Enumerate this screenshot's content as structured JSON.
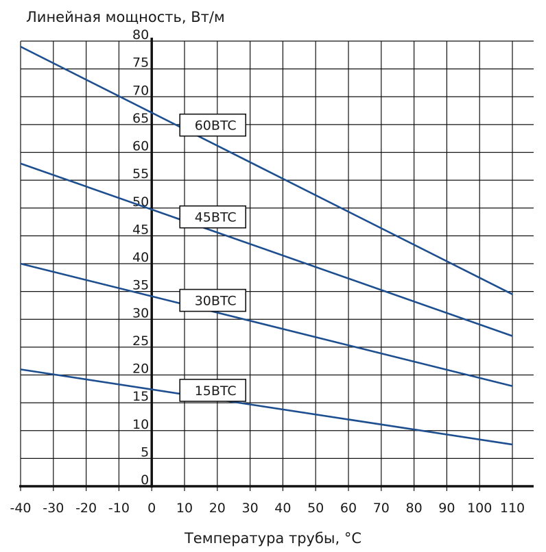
{
  "chart_data": {
    "type": "line",
    "title": "",
    "ylabel": "Линейная мощность, Вт/м",
    "xlabel": "Температура трубы, °C",
    "xlim": [
      -40,
      110
    ],
    "ylim": [
      0,
      80
    ],
    "x_ticks": [
      -40,
      -30,
      -20,
      -10,
      0,
      10,
      20,
      30,
      40,
      50,
      60,
      70,
      80,
      90,
      100,
      110
    ],
    "y_ticks": [
      0,
      5,
      10,
      15,
      20,
      25,
      30,
      35,
      40,
      45,
      50,
      55,
      60,
      65,
      70,
      75,
      80
    ],
    "grid": true,
    "line_color": "#1d4e8f",
    "series": [
      {
        "name": "60BTC",
        "x": [
          -40,
          110
        ],
        "y": [
          79,
          34.5
        ]
      },
      {
        "name": "45BTC",
        "x": [
          -40,
          110
        ],
        "y": [
          58,
          27
        ]
      },
      {
        "name": "30BTC",
        "x": [
          -40,
          110
        ],
        "y": [
          40,
          18
        ]
      },
      {
        "name": "15BTC",
        "x": [
          -40,
          110
        ],
        "y": [
          21,
          7.5
        ]
      }
    ]
  }
}
